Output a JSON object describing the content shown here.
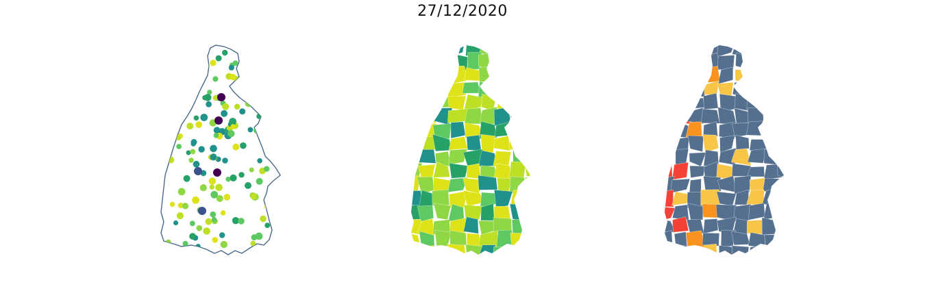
{
  "figure": {
    "title": "27/12/2020"
  },
  "colors": {
    "outline": "#4a6a8a",
    "viridis": [
      "#440154",
      "#3b528b",
      "#21918c",
      "#26a269",
      "#5ec962",
      "#8fd744",
      "#bddf26",
      "#dde318"
    ],
    "choropleth_base": "#55708f",
    "levels": {
      "low": "#55708f",
      "medium": "#f7c548",
      "high": "#f7931e",
      "very_high": "#f44336"
    }
  },
  "panels": [
    {
      "id": "bubble-map",
      "kind": "proportional-symbols"
    },
    {
      "id": "continuous-choropleth",
      "kind": "choropleth"
    },
    {
      "id": "categorical-choropleth",
      "kind": "choropleth"
    }
  ]
}
